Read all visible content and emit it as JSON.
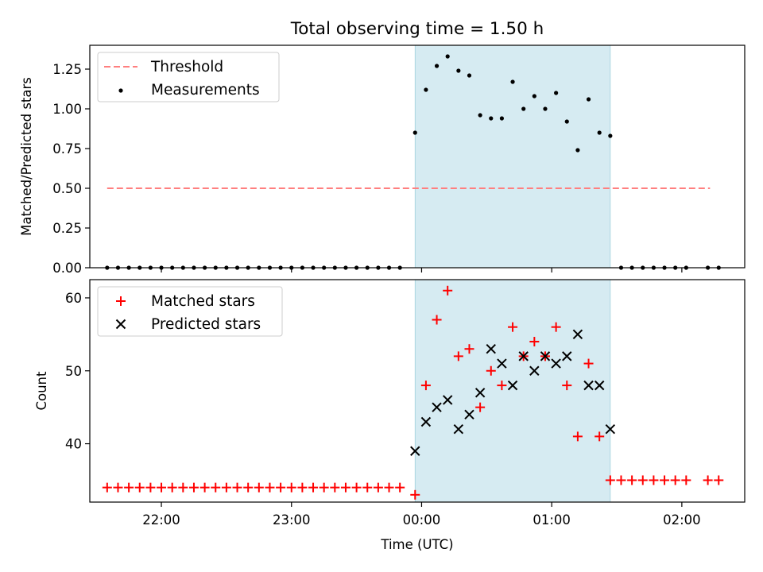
{
  "chart_data": [
    {
      "type": "scatter",
      "title": "Total observing time = 1.50 h",
      "ylabel": "Matched/Predicted stars",
      "xlabel": "",
      "xlim": [
        "21:27",
        "02:29"
      ],
      "ylim": [
        0,
        1.4
      ],
      "yticks": [
        {
          "v": 0,
          "label": "0.00"
        },
        {
          "v": 0.25,
          "label": "0.25"
        },
        {
          "v": 0.5,
          "label": "0.50"
        },
        {
          "v": 0.75,
          "label": "0.75"
        },
        {
          "v": 1.0,
          "label": "1.00"
        },
        {
          "v": 1.25,
          "label": "1.25"
        }
      ],
      "shaded_region": {
        "start": "23:57",
        "end": "01:27",
        "color": "#add8e6"
      },
      "legend": {
        "placement": "top-left",
        "entries": [
          "Threshold",
          "Measurements"
        ]
      },
      "threshold": {
        "name": "Threshold",
        "value": 0.5,
        "start": "21:35",
        "end": "02:13",
        "color": "#ff7f7f"
      },
      "series": [
        {
          "name": "Measurements",
          "color": "#000000",
          "x": [
            "21:35",
            "21:40",
            "21:45",
            "21:50",
            "21:55",
            "22:00",
            "22:05",
            "22:10",
            "22:15",
            "22:20",
            "22:25",
            "22:30",
            "22:35",
            "22:40",
            "22:45",
            "22:50",
            "22:55",
            "23:00",
            "23:05",
            "23:10",
            "23:15",
            "23:20",
            "23:25",
            "23:30",
            "23:35",
            "23:40",
            "23:45",
            "23:50",
            "23:57",
            "00:02",
            "00:07",
            "00:12",
            "00:17",
            "00:22",
            "00:27",
            "00:32",
            "00:37",
            "00:42",
            "00:47",
            "00:52",
            "00:57",
            "01:02",
            "01:07",
            "01:12",
            "01:17",
            "01:22",
            "01:27",
            "01:32",
            "01:37",
            "01:42",
            "01:47",
            "01:52",
            "01:57",
            "02:02",
            "02:12",
            "02:17"
          ],
          "y": [
            0,
            0,
            0,
            0,
            0,
            0,
            0,
            0,
            0,
            0,
            0,
            0,
            0,
            0,
            0,
            0,
            0,
            0,
            0,
            0,
            0,
            0,
            0,
            0,
            0,
            0,
            0,
            0,
            0.85,
            1.12,
            1.27,
            1.33,
            1.24,
            1.21,
            0.96,
            0.94,
            0.94,
            1.17,
            1.0,
            1.08,
            1.0,
            1.1,
            0.92,
            0.74,
            1.06,
            0.85,
            0.83,
            0,
            0,
            0,
            0,
            0,
            0,
            0,
            0,
            0
          ]
        }
      ]
    },
    {
      "type": "scatter",
      "title": "",
      "ylabel": "Count",
      "xlabel": "Time (UTC)",
      "xlim": [
        "21:27",
        "02:29"
      ],
      "ylim": [
        32,
        62.5
      ],
      "yticks": [
        {
          "v": 40,
          "label": "40"
        },
        {
          "v": 50,
          "label": "50"
        },
        {
          "v": 60,
          "label": "60"
        }
      ],
      "xticks": [
        "22:00",
        "23:00",
        "00:00",
        "01:00",
        "02:00"
      ],
      "shaded_region": {
        "start": "23:57",
        "end": "01:27",
        "color": "#add8e6"
      },
      "legend": {
        "placement": "top-left",
        "entries": [
          "Matched stars",
          "Predicted stars"
        ]
      },
      "series": [
        {
          "name": "Matched stars",
          "marker": "plus",
          "color": "#ff0000",
          "x": [
            "21:35",
            "21:40",
            "21:45",
            "21:50",
            "21:55",
            "22:00",
            "22:05",
            "22:10",
            "22:15",
            "22:20",
            "22:25",
            "22:30",
            "22:35",
            "22:40",
            "22:45",
            "22:50",
            "22:55",
            "23:00",
            "23:05",
            "23:10",
            "23:15",
            "23:20",
            "23:25",
            "23:30",
            "23:35",
            "23:40",
            "23:45",
            "23:50",
            "23:57",
            "00:02",
            "00:07",
            "00:12",
            "00:17",
            "00:22",
            "00:27",
            "00:32",
            "00:37",
            "00:42",
            "00:47",
            "00:52",
            "00:57",
            "01:02",
            "01:07",
            "01:12",
            "01:17",
            "01:22",
            "01:27",
            "01:32",
            "01:37",
            "01:42",
            "01:47",
            "01:52",
            "01:57",
            "02:02",
            "02:12",
            "02:17"
          ],
          "y": [
            34,
            34,
            34,
            34,
            34,
            34,
            34,
            34,
            34,
            34,
            34,
            34,
            34,
            34,
            34,
            34,
            34,
            34,
            34,
            34,
            34,
            34,
            34,
            34,
            34,
            34,
            34,
            34,
            33,
            48,
            57,
            61,
            52,
            53,
            45,
            50,
            48,
            56,
            52,
            54,
            52,
            56,
            48,
            41,
            51,
            41,
            35,
            35,
            35,
            35,
            35,
            35,
            35,
            35,
            35,
            35
          ]
        },
        {
          "name": "Predicted stars",
          "marker": "x",
          "color": "#000000",
          "x": [
            "23:57",
            "00:02",
            "00:07",
            "00:12",
            "00:17",
            "00:22",
            "00:27",
            "00:32",
            "00:37",
            "00:42",
            "00:47",
            "00:52",
            "00:57",
            "01:02",
            "01:07",
            "01:12",
            "01:17",
            "01:22",
            "01:27"
          ],
          "y": [
            39,
            43,
            45,
            46,
            42,
            44,
            47,
            53,
            51,
            48,
            52,
            50,
            52,
            51,
            52,
            55,
            48,
            48,
            42
          ]
        }
      ]
    }
  ]
}
